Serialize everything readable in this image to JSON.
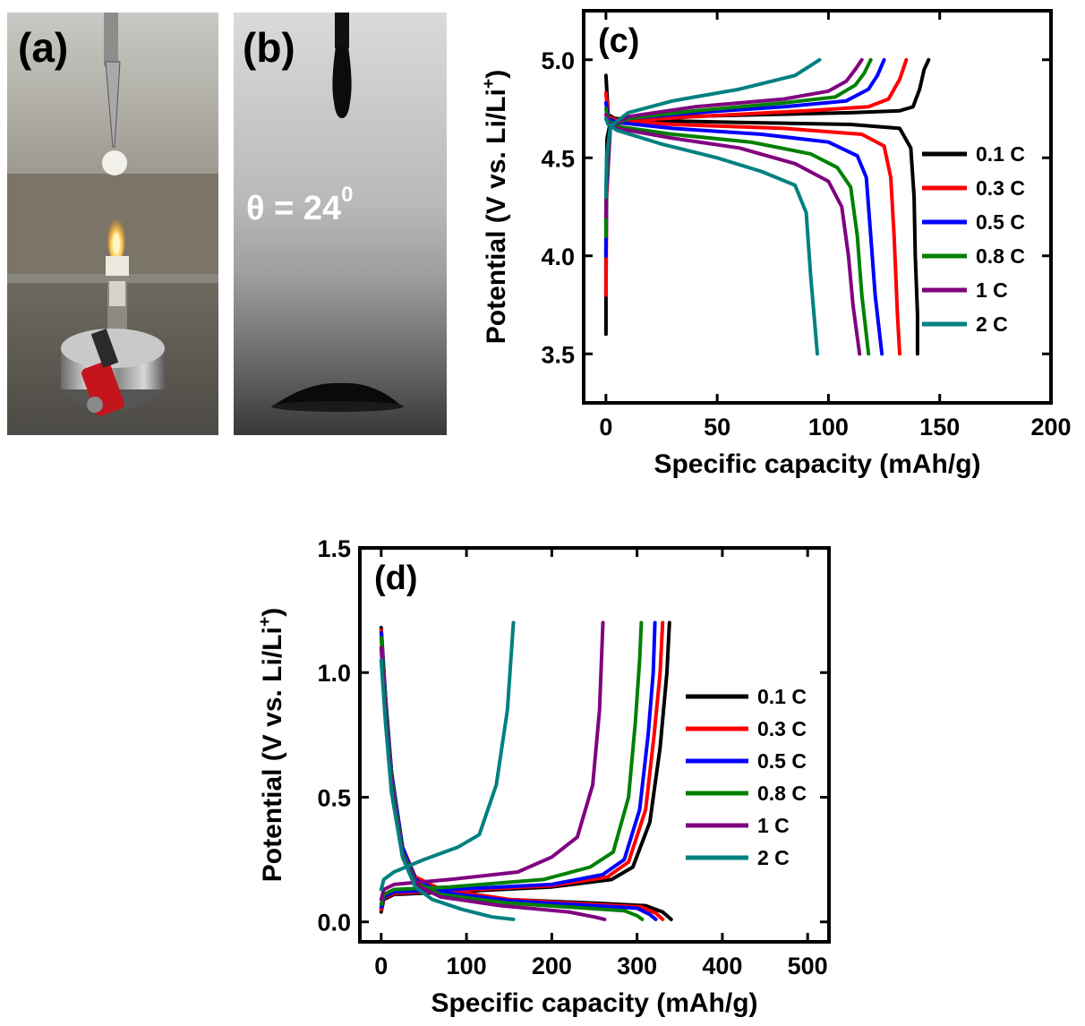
{
  "panels": {
    "a": {
      "label": "(a)"
    },
    "b": {
      "label": "(b)",
      "angle_text": "θ = 24",
      "angle_sup": "0"
    }
  },
  "colors": {
    "0.1 C": "#000000",
    "0.3 C": "#ff0000",
    "0.5 C": "#0000ff",
    "0.8 C": "#008000",
    "1 C": "#800080",
    "2 C": "#008080"
  },
  "chart_data": [
    {
      "panel": "(c)",
      "type": "line",
      "xlabel": "Specific capacity (mAh/g)",
      "ylabel": "Potential (V vs. Li/Li+)",
      "xlim": [
        -10,
        200
      ],
      "ylim": [
        3.25,
        5.25
      ],
      "xticks": [
        0,
        50,
        100,
        150,
        200
      ],
      "yticks": [
        3.5,
        4.0,
        4.5,
        5.0
      ],
      "legend_position": "right",
      "legend": [
        "0.1 C",
        "0.3 C",
        "0.5 C",
        "0.8 C",
        "1 C",
        "2 C"
      ],
      "series": [
        {
          "name": "0.1 C",
          "charge": [
            [
              0,
              3.6
            ],
            [
              0,
              4.2
            ],
            [
              0.5,
              4.6
            ],
            [
              2,
              4.68
            ],
            [
              10,
              4.7
            ],
            [
              30,
              4.71
            ],
            [
              70,
              4.72
            ],
            [
              110,
              4.73
            ],
            [
              132,
              4.74
            ],
            [
              138,
              4.76
            ],
            [
              141,
              4.85
            ],
            [
              143,
              4.95
            ],
            [
              145,
              5.0
            ]
          ],
          "discharge": [
            [
              0,
              4.92
            ],
            [
              1,
              4.72
            ],
            [
              4,
              4.7
            ],
            [
              20,
              4.69
            ],
            [
              60,
              4.68
            ],
            [
              110,
              4.67
            ],
            [
              132,
              4.65
            ],
            [
              137,
              4.55
            ],
            [
              138.5,
              4.3
            ],
            [
              139,
              4.0
            ],
            [
              140,
              3.7
            ],
            [
              140,
              3.5
            ]
          ]
        },
        {
          "name": "0.3 C",
          "charge": [
            [
              0,
              3.8
            ],
            [
              0.3,
              4.3
            ],
            [
              2,
              4.66
            ],
            [
              10,
              4.69
            ],
            [
              40,
              4.71
            ],
            [
              90,
              4.74
            ],
            [
              118,
              4.76
            ],
            [
              127,
              4.8
            ],
            [
              132,
              4.9
            ],
            [
              135,
              5.0
            ]
          ],
          "discharge": [
            [
              0,
              4.83
            ],
            [
              1,
              4.71
            ],
            [
              5,
              4.69
            ],
            [
              30,
              4.67
            ],
            [
              80,
              4.65
            ],
            [
              115,
              4.62
            ],
            [
              125,
              4.56
            ],
            [
              128,
              4.4
            ],
            [
              129.5,
              4.1
            ],
            [
              131,
              3.7
            ],
            [
              132,
              3.5
            ]
          ]
        },
        {
          "name": "0.5 C",
          "charge": [
            [
              0,
              4.0
            ],
            [
              0.3,
              4.35
            ],
            [
              2,
              4.66
            ],
            [
              10,
              4.7
            ],
            [
              40,
              4.73
            ],
            [
              80,
              4.76
            ],
            [
              108,
              4.79
            ],
            [
              118,
              4.85
            ],
            [
              122,
              4.92
            ],
            [
              125,
              5.0
            ]
          ],
          "discharge": [
            [
              0,
              4.78
            ],
            [
              1,
              4.7
            ],
            [
              5,
              4.68
            ],
            [
              30,
              4.65
            ],
            [
              70,
              4.62
            ],
            [
              100,
              4.58
            ],
            [
              113,
              4.51
            ],
            [
              117,
              4.4
            ],
            [
              119,
              4.1
            ],
            [
              121,
              3.8
            ],
            [
              124,
              3.5
            ]
          ]
        },
        {
          "name": "0.8 C",
          "charge": [
            [
              0,
              4.1
            ],
            [
              0.3,
              4.4
            ],
            [
              2,
              4.66
            ],
            [
              10,
              4.7
            ],
            [
              40,
              4.74
            ],
            [
              80,
              4.78
            ],
            [
              103,
              4.81
            ],
            [
              112,
              4.87
            ],
            [
              116,
              4.93
            ],
            [
              119,
              5.0
            ]
          ],
          "discharge": [
            [
              0,
              4.75
            ],
            [
              1,
              4.69
            ],
            [
              5,
              4.66
            ],
            [
              30,
              4.62
            ],
            [
              65,
              4.58
            ],
            [
              92,
              4.52
            ],
            [
              104,
              4.45
            ],
            [
              110,
              4.35
            ],
            [
              113,
              4.1
            ],
            [
              115,
              3.8
            ],
            [
              118,
              3.5
            ]
          ]
        },
        {
          "name": "1 C",
          "charge": [
            [
              0,
              4.2
            ],
            [
              0.3,
              4.45
            ],
            [
              2,
              4.66
            ],
            [
              10,
              4.71
            ],
            [
              40,
              4.76
            ],
            [
              80,
              4.8
            ],
            [
              100,
              4.84
            ],
            [
              108,
              4.89
            ],
            [
              112,
              4.95
            ],
            [
              115,
              5.0
            ]
          ],
          "discharge": [
            [
              0,
              4.72
            ],
            [
              1,
              4.68
            ],
            [
              5,
              4.65
            ],
            [
              30,
              4.6
            ],
            [
              60,
              4.55
            ],
            [
              85,
              4.47
            ],
            [
              100,
              4.38
            ],
            [
              106,
              4.25
            ],
            [
              109,
              4.0
            ],
            [
              111,
              3.75
            ],
            [
              114,
              3.5
            ]
          ]
        },
        {
          "name": "2 C",
          "charge": [
            [
              0,
              4.3
            ],
            [
              0.3,
              4.5
            ],
            [
              2,
              4.66
            ],
            [
              10,
              4.73
            ],
            [
              30,
              4.79
            ],
            [
              60,
              4.85
            ],
            [
              85,
              4.92
            ],
            [
              96,
              5.0
            ]
          ],
          "discharge": [
            [
              0,
              4.7
            ],
            [
              1,
              4.67
            ],
            [
              5,
              4.64
            ],
            [
              25,
              4.57
            ],
            [
              50,
              4.5
            ],
            [
              70,
              4.43
            ],
            [
              85,
              4.36
            ],
            [
              90,
              4.22
            ],
            [
              92,
              3.9
            ],
            [
              93.5,
              3.7
            ],
            [
              95,
              3.5
            ]
          ]
        }
      ]
    },
    {
      "panel": "(d)",
      "type": "line",
      "xlabel": "Specific capacity (mAh/g)",
      "ylabel": "Potential (V vs. Li/Li+)",
      "xlim": [
        -25,
        525
      ],
      "ylim": [
        -0.08,
        1.5
      ],
      "xticks": [
        0,
        100,
        200,
        300,
        400,
        500
      ],
      "yticks": [
        0.0,
        0.5,
        1.0,
        1.5
      ],
      "legend_position": "right",
      "legend": [
        "0.1 C",
        "0.3 C",
        "0.5 C",
        "0.8 C",
        "1 C",
        "2 C"
      ],
      "series": [
        {
          "name": "0.1 C",
          "discharge": [
            [
              0,
              1.18
            ],
            [
              5,
              0.9
            ],
            [
              12,
              0.6
            ],
            [
              25,
              0.3
            ],
            [
              40,
              0.18
            ],
            [
              70,
              0.13
            ],
            [
              150,
              0.09
            ],
            [
              250,
              0.075
            ],
            [
              310,
              0.065
            ],
            [
              330,
              0.04
            ],
            [
              340,
              0.01
            ]
          ],
          "charge": [
            [
              0,
              0.04
            ],
            [
              3,
              0.09
            ],
            [
              15,
              0.11
            ],
            [
              80,
              0.12
            ],
            [
              200,
              0.14
            ],
            [
              270,
              0.17
            ],
            [
              295,
              0.22
            ],
            [
              315,
              0.4
            ],
            [
              327,
              0.7
            ],
            [
              335,
              1.0
            ],
            [
              338,
              1.2
            ]
          ]
        },
        {
          "name": "0.3 C",
          "discharge": [
            [
              0,
              1.17
            ],
            [
              5,
              0.9
            ],
            [
              12,
              0.6
            ],
            [
              25,
              0.3
            ],
            [
              40,
              0.18
            ],
            [
              70,
              0.13
            ],
            [
              150,
              0.09
            ],
            [
              250,
              0.07
            ],
            [
              305,
              0.06
            ],
            [
              322,
              0.035
            ],
            [
              330,
              0.01
            ]
          ],
          "charge": [
            [
              0,
              0.05
            ],
            [
              3,
              0.095
            ],
            [
              15,
              0.115
            ],
            [
              80,
              0.125
            ],
            [
              200,
              0.145
            ],
            [
              265,
              0.18
            ],
            [
              290,
              0.24
            ],
            [
              310,
              0.45
            ],
            [
              320,
              0.75
            ],
            [
              327,
              1.0
            ],
            [
              330,
              1.2
            ]
          ]
        },
        {
          "name": "0.5 C",
          "discharge": [
            [
              0,
              1.16
            ],
            [
              5,
              0.9
            ],
            [
              12,
              0.6
            ],
            [
              25,
              0.3
            ],
            [
              40,
              0.17
            ],
            [
              70,
              0.12
            ],
            [
              150,
              0.085
            ],
            [
              250,
              0.065
            ],
            [
              300,
              0.055
            ],
            [
              315,
              0.03
            ],
            [
              322,
              0.01
            ]
          ],
          "charge": [
            [
              0,
              0.06
            ],
            [
              3,
              0.1
            ],
            [
              15,
              0.12
            ],
            [
              80,
              0.13
            ],
            [
              200,
              0.15
            ],
            [
              260,
              0.19
            ],
            [
              285,
              0.25
            ],
            [
              303,
              0.45
            ],
            [
              313,
              0.75
            ],
            [
              319,
              1.0
            ],
            [
              321,
              1.2
            ]
          ]
        },
        {
          "name": "0.8 C",
          "discharge": [
            [
              0,
              1.14
            ],
            [
              5,
              0.88
            ],
            [
              12,
              0.58
            ],
            [
              25,
              0.28
            ],
            [
              40,
              0.16
            ],
            [
              70,
              0.11
            ],
            [
              150,
              0.075
            ],
            [
              240,
              0.055
            ],
            [
              285,
              0.045
            ],
            [
              300,
              0.025
            ],
            [
              306,
              0.01
            ]
          ],
          "charge": [
            [
              0,
              0.07
            ],
            [
              3,
              0.11
            ],
            [
              15,
              0.13
            ],
            [
              80,
              0.14
            ],
            [
              190,
              0.17
            ],
            [
              245,
              0.22
            ],
            [
              272,
              0.28
            ],
            [
              290,
              0.5
            ],
            [
              298,
              0.8
            ],
            [
              303,
              1.05
            ],
            [
              305,
              1.2
            ]
          ]
        },
        {
          "name": "1 C",
          "discharge": [
            [
              0,
              1.1
            ],
            [
              5,
              0.85
            ],
            [
              12,
              0.55
            ],
            [
              25,
              0.27
            ],
            [
              40,
              0.15
            ],
            [
              70,
              0.1
            ],
            [
              140,
              0.065
            ],
            [
              220,
              0.04
            ],
            [
              250,
              0.02
            ],
            [
              262,
              0.01
            ]
          ],
          "charge": [
            [
              0,
              0.09
            ],
            [
              3,
              0.13
            ],
            [
              15,
              0.15
            ],
            [
              80,
              0.17
            ],
            [
              160,
              0.2
            ],
            [
              200,
              0.26
            ],
            [
              230,
              0.34
            ],
            [
              248,
              0.55
            ],
            [
              256,
              0.85
            ],
            [
              260,
              1.2
            ]
          ]
        },
        {
          "name": "2 C",
          "discharge": [
            [
              0,
              1.05
            ],
            [
              5,
              0.8
            ],
            [
              12,
              0.52
            ],
            [
              25,
              0.26
            ],
            [
              40,
              0.14
            ],
            [
              60,
              0.09
            ],
            [
              95,
              0.05
            ],
            [
              130,
              0.02
            ],
            [
              155,
              0.01
            ]
          ],
          "charge": [
            [
              0,
              0.13
            ],
            [
              3,
              0.17
            ],
            [
              15,
              0.2
            ],
            [
              50,
              0.25
            ],
            [
              90,
              0.3
            ],
            [
              115,
              0.35
            ],
            [
              135,
              0.55
            ],
            [
              148,
              0.85
            ],
            [
              155,
              1.2
            ]
          ]
        }
      ]
    }
  ]
}
